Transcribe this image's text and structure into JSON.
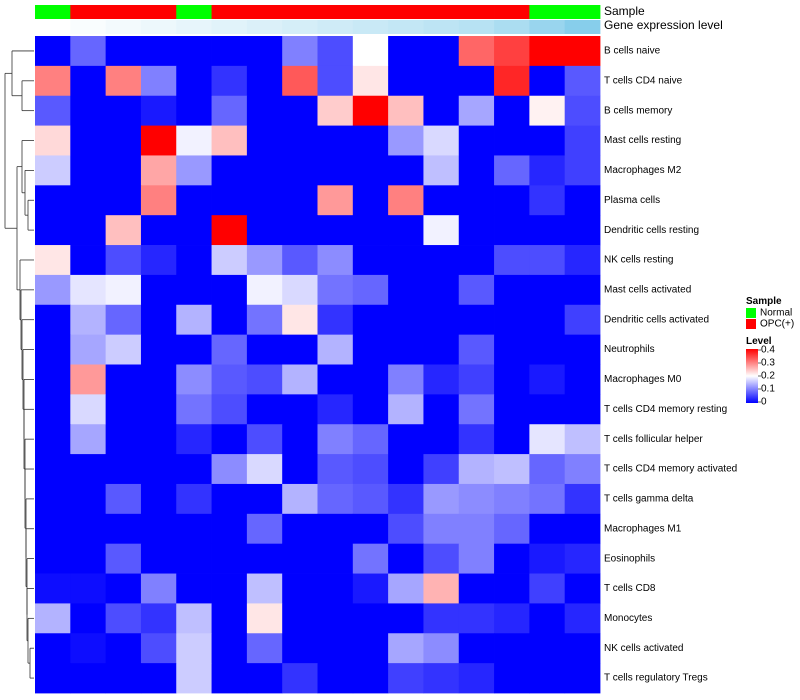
{
  "chart_data": {
    "type": "heatmap",
    "rows": [
      "B cells naive",
      "T cells CD4 naive",
      "B cells memory",
      "Mast cells resting",
      "Macrophages M2",
      "Plasma cells",
      "Dendritic cells resting",
      "NK cells resting",
      "Mast cells activated",
      "Dendritic cells activated",
      "Neutrophils",
      "Macrophages M0",
      "T cells CD4 memory resting",
      "T cells follicular helper",
      "T cells CD4 memory activated",
      "T cells gamma delta",
      "Macrophages M1",
      "Eosinophils",
      "T cells CD8",
      "Monocytes",
      "NK cells activated",
      "T cells regulatory  Tregs"
    ],
    "n_samples": 16,
    "sample_groups": [
      "Normal",
      "OPC(+)",
      "OPC(+)",
      "OPC(+)",
      "Normal",
      "OPC(+)",
      "OPC(+)",
      "OPC(+)",
      "OPC(+)",
      "OPC(+)",
      "OPC(+)",
      "OPC(+)",
      "OPC(+)",
      "OPC(+)",
      "Normal",
      "Normal"
    ],
    "gene_expression_level": [
      0.0,
      0.05,
      0.1,
      0.15,
      0.2,
      0.25,
      0.3,
      0.35,
      0.4,
      0.45,
      0.5,
      0.55,
      0.6,
      0.7,
      0.85,
      1.0
    ],
    "values": [
      [
        0,
        0.08,
        0,
        0,
        0,
        0,
        0,
        0.1,
        0.06,
        0.2,
        0,
        0,
        0.32,
        0.35,
        0.4,
        0.4
      ],
      [
        0.3,
        0,
        0.3,
        0.1,
        0,
        0.04,
        0,
        0.33,
        0.06,
        0.22,
        0,
        0,
        0,
        0.37,
        0,
        0.07
      ],
      [
        0.07,
        0,
        0,
        0.02,
        0,
        0.08,
        0,
        0,
        0.24,
        0.4,
        0.25,
        0,
        0.13,
        0,
        0.21,
        0.06
      ],
      [
        0.23,
        0,
        0,
        0.4,
        0.19,
        0.25,
        0,
        0,
        0,
        0,
        0.12,
        0.17,
        0,
        0,
        0,
        0.05
      ],
      [
        0.16,
        0,
        0,
        0.27,
        0.12,
        0,
        0,
        0,
        0,
        0,
        0,
        0.15,
        0,
        0.08,
        0.03,
        0.05
      ],
      [
        0,
        0,
        0,
        0.3,
        0,
        0,
        0,
        0,
        0.28,
        0,
        0.3,
        0,
        0,
        0,
        0.04,
        0
      ],
      [
        0,
        0,
        0.25,
        0,
        0,
        0.4,
        0,
        0,
        0,
        0,
        0,
        0.19,
        0,
        0,
        0,
        0
      ],
      [
        0.22,
        0,
        0.06,
        0.03,
        0,
        0.16,
        0.12,
        0.07,
        0.11,
        0,
        0,
        0,
        0,
        0.06,
        0.06,
        0.03
      ],
      [
        0.12,
        0.18,
        0.19,
        0,
        0,
        0,
        0.19,
        0.17,
        0.09,
        0.08,
        0,
        0,
        0.07,
        0,
        0,
        0
      ],
      [
        0,
        0.14,
        0.08,
        0,
        0.14,
        0,
        0.09,
        0.22,
        0.04,
        0,
        0,
        0,
        0,
        0,
        0,
        0.05
      ],
      [
        0,
        0.13,
        0.16,
        0,
        0,
        0.08,
        0,
        0,
        0.14,
        0,
        0,
        0,
        0.07,
        0,
        0,
        0
      ],
      [
        0,
        0.28,
        0,
        0,
        0.11,
        0.07,
        0.06,
        0.14,
        0,
        0,
        0.1,
        0.03,
        0.05,
        0,
        0.02,
        0
      ],
      [
        0,
        0.17,
        0,
        0,
        0.09,
        0.06,
        0,
        0,
        0.03,
        0,
        0.14,
        0,
        0.09,
        0,
        0,
        0
      ],
      [
        0,
        0.13,
        0,
        0,
        0.03,
        0,
        0.06,
        0,
        0.1,
        0.08,
        0,
        0,
        0.04,
        0,
        0.18,
        0.15
      ],
      [
        0,
        0,
        0,
        0,
        0,
        0.11,
        0.17,
        0,
        0.07,
        0.06,
        0,
        0.05,
        0.14,
        0.15,
        0.08,
        0.1
      ],
      [
        0,
        0,
        0.07,
        0,
        0.04,
        0,
        0,
        0.14,
        0.08,
        0.07,
        0.04,
        0.12,
        0.11,
        0.1,
        0.09,
        0.04
      ],
      [
        0,
        0,
        0,
        0,
        0,
        0,
        0.08,
        0,
        0,
        0,
        0.06,
        0.1,
        0.1,
        0.08,
        0,
        0
      ],
      [
        0,
        0,
        0.07,
        0,
        0,
        0,
        0,
        0,
        0,
        0.09,
        0,
        0.06,
        0.1,
        0,
        0.02,
        0.03
      ],
      [
        0.01,
        0.01,
        0,
        0.1,
        0,
        0,
        0.15,
        0,
        0,
        0.02,
        0.13,
        0.26,
        0,
        0,
        0.05,
        0
      ],
      [
        0.14,
        0,
        0.06,
        0.04,
        0.15,
        0,
        0.22,
        0,
        0,
        0,
        0,
        0.04,
        0.04,
        0.03,
        0,
        0.03
      ],
      [
        0,
        0.01,
        0,
        0.06,
        0.16,
        0,
        0.08,
        0,
        0,
        0,
        0.13,
        0.11,
        0,
        0,
        0,
        0
      ],
      [
        0,
        0,
        0,
        0,
        0.16,
        0,
        0,
        0.04,
        0,
        0,
        0.05,
        0.04,
        0.03,
        0,
        0,
        0
      ]
    ],
    "color_scale": {
      "min": 0,
      "max": 0.4,
      "colors": [
        "#0000ff",
        "#ffffff",
        "#ff0000"
      ]
    },
    "annotation_rows": [
      "Sample",
      "Gene expression level"
    ],
    "legend": {
      "sample_title": "Sample",
      "sample_items": [
        {
          "label": "Normal",
          "color": "#00ff00"
        },
        {
          "label": "OPC(+)",
          "color": "#ff0000"
        }
      ],
      "level_title": "Level",
      "level_ticks": [
        "0.4",
        "0.3",
        "0.2",
        "0.1",
        "0"
      ]
    },
    "gene_expression_colors": [
      "#ffffff",
      "#87ceeb"
    ]
  }
}
